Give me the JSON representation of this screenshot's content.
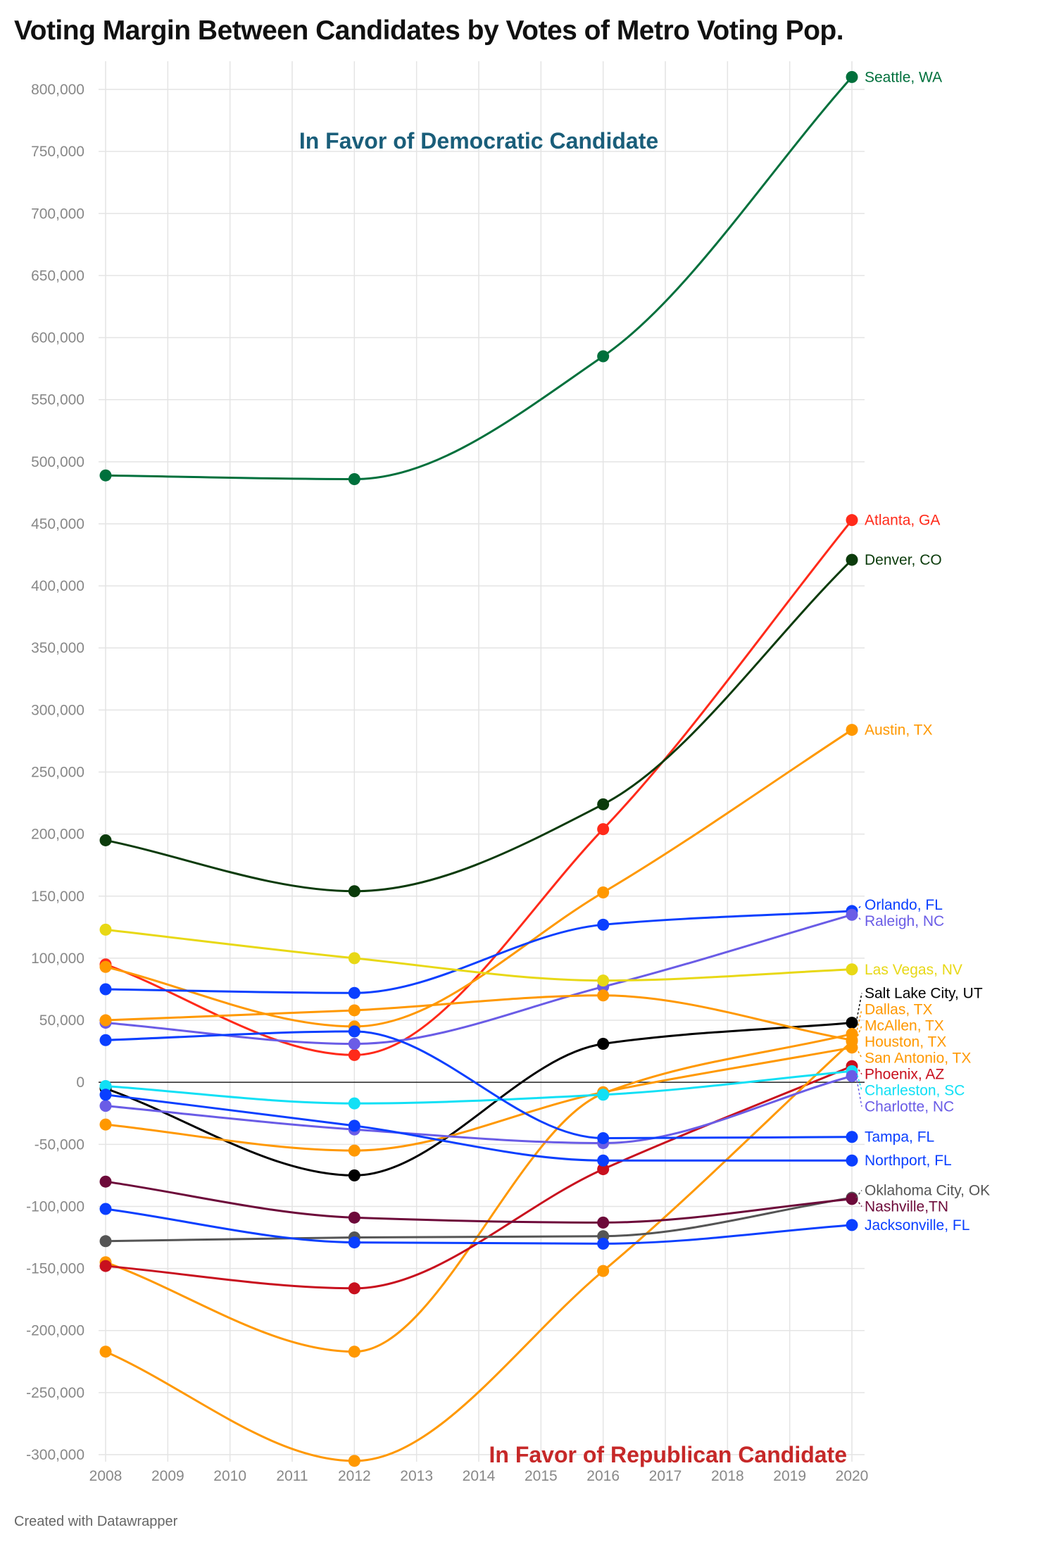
{
  "title": "Voting Margin Between Candidates by Votes of Metro Voting Pop.",
  "footer": "Created with Datawrapper",
  "chart_data": {
    "type": "line",
    "annotations": [
      {
        "text": "In Favor of Democratic Candidate",
        "color": "#1a5e7a"
      },
      {
        "text": "In Favor of Republican Candidate",
        "color": "#c62828"
      }
    ],
    "x_ticks": [
      2008,
      2009,
      2010,
      2011,
      2012,
      2013,
      2014,
      2015,
      2016,
      2017,
      2018,
      2019,
      2020
    ],
    "y_ticks": [
      800000,
      750000,
      700000,
      650000,
      600000,
      550000,
      500000,
      450000,
      400000,
      350000,
      300000,
      250000,
      200000,
      150000,
      100000,
      50000,
      0,
      -50000,
      -100000,
      -150000,
      -200000,
      -250000,
      -300000
    ],
    "y_tick_labels": [
      "800,000",
      "750,000",
      "700,000",
      "650,000",
      "600,000",
      "550,000",
      "500,000",
      "450,000",
      "400,000",
      "350,000",
      "300,000",
      "250,000",
      "200,000",
      "150,000",
      "100,000",
      "50,000",
      "0",
      "-50,000",
      "-100,000",
      "-150,000",
      "-200,000",
      "-250,000",
      "-300,000"
    ],
    "xlim": [
      2008,
      2020
    ],
    "ylim": [
      -300000,
      800000
    ],
    "x": [
      2008,
      2012,
      2016,
      2020
    ],
    "grid": true,
    "series": [
      {
        "name": "Seattle, WA",
        "color": "#00703c",
        "values": [
          489000,
          486000,
          585000,
          810000
        ]
      },
      {
        "name": "Atlanta, GA",
        "color": "#ff2a1a",
        "values": [
          95000,
          22000,
          204000,
          453000
        ]
      },
      {
        "name": "Denver, CO",
        "color": "#0b3b0b",
        "values": [
          195000,
          154000,
          224000,
          421000
        ]
      },
      {
        "name": "Austin, TX",
        "color": "#ff9800",
        "values": [
          93000,
          45000,
          153000,
          284000
        ]
      },
      {
        "name": "Orlando, FL",
        "color": "#0a3fff",
        "values": [
          75000,
          72000,
          127000,
          138000
        ]
      },
      {
        "name": "Raleigh, NC",
        "color": "#6a5ce6",
        "values": [
          48000,
          31000,
          77000,
          135000
        ]
      },
      {
        "name": "Las Vegas, NV",
        "color": "#e8d815",
        "values": [
          123000,
          100000,
          82000,
          91000
        ]
      },
      {
        "name": "Salt Lake City, UT",
        "color": "#000000",
        "values": [
          -5000,
          -75000,
          31000,
          48000
        ]
      },
      {
        "name": "Dallas, TX",
        "color": "#ff9800",
        "values": [
          -145000,
          -217000,
          -9000,
          39000
        ]
      },
      {
        "name": "McAllen, TX",
        "color": "#ff9800",
        "values": [
          50000,
          58000,
          70000,
          34000
        ]
      },
      {
        "name": "San Antonio, TX",
        "color": "#ff9800",
        "values": [
          -34000,
          -55000,
          -8000,
          28000
        ]
      },
      {
        "name": "Phoenix, AZ",
        "color": "#c8101e",
        "values": [
          -148000,
          -166000,
          -70000,
          13000
        ]
      },
      {
        "name": "Houston, TX",
        "color": "#ff9800",
        "values": [
          -217000,
          -305000,
          -152000,
          33000
        ]
      },
      {
        "name": "Charleston, SC",
        "color": "#11e0f5",
        "values": [
          -3000,
          -17000,
          -10000,
          9000
        ]
      },
      {
        "name": "Charlotte, NC",
        "color": "#6a5ce6",
        "values": [
          -19000,
          -38000,
          -49000,
          5000
        ]
      },
      {
        "name": "Tampa, FL",
        "color": "#0a3fff",
        "values": [
          34000,
          41000,
          -45000,
          -44000
        ]
      },
      {
        "name": "Northport, FL",
        "color": "#0a3fff",
        "values": [
          -10000,
          -35000,
          -63000,
          -63000
        ]
      },
      {
        "name": "Oklahoma City, OK",
        "color": "#555555",
        "values": [
          -128000,
          -125000,
          -124000,
          -93000
        ]
      },
      {
        "name": "Nashville,TN",
        "color": "#6d0a3a",
        "values": [
          -80000,
          -109000,
          -113000,
          -94000
        ]
      },
      {
        "name": "Jacksonville, FL",
        "color": "#0a3fff",
        "values": [
          -102000,
          -129000,
          -130000,
          -115000
        ]
      }
    ]
  }
}
